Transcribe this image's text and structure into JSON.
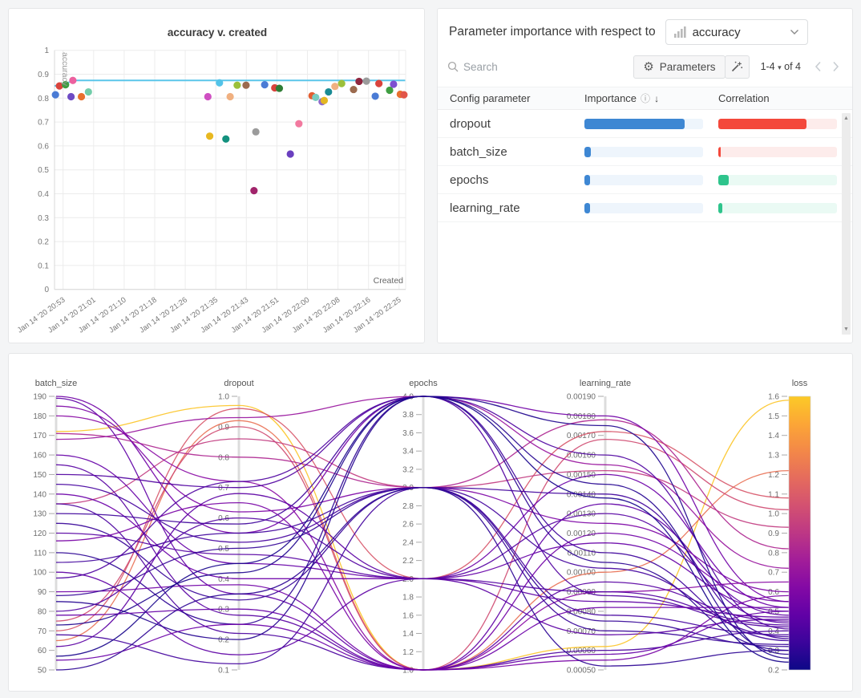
{
  "colors": {
    "page_bg": "#f4f5f6",
    "panel_border": "#e5e6e8",
    "grid": "#ececec",
    "axis": "#d8d8d8",
    "tick_text": "#777777",
    "baseline_blue": "#5bc6ea"
  },
  "importance_panel": {
    "title_prefix": "Parameter importance with respect to",
    "metric_dropdown": {
      "value": "accuracy"
    },
    "search": {
      "placeholder": "Search"
    },
    "buttons": {
      "parameters": "Parameters"
    },
    "pagination": {
      "range": "1-4",
      "of_label": "of 4"
    },
    "table": {
      "headers": {
        "parameter": "Config parameter",
        "importance": "Importance",
        "correlation": "Correlation"
      },
      "rows": [
        {
          "name": "dropout",
          "importance": 0.845,
          "correlation": -0.745
        },
        {
          "name": "batch_size",
          "importance": 0.055,
          "correlation": -0.02
        },
        {
          "name": "epochs",
          "importance": 0.05,
          "correlation": 0.09
        },
        {
          "name": "learning_rate",
          "importance": 0.05,
          "correlation": 0.035
        }
      ],
      "colors": {
        "importance_fill": "#3e87d3",
        "importance_track": "#eef5fc",
        "negative_fill": "#f4483b",
        "negative_track": "#fdeceb",
        "positive_fill": "#2ec48c",
        "positive_track": "#eafaf4"
      }
    }
  },
  "chart_data": [
    {
      "type": "scatter",
      "title": "accuracy v. created",
      "xlabel": "Created",
      "ylabel": "accuracy",
      "ylim": [
        0,
        1
      ],
      "y_tick_step": 0.1,
      "x_tick_labels": [
        "Jan 14 '20 20:53",
        "Jan 14 '20 21:01",
        "Jan 14 '20 21:10",
        "Jan 14 '20 21:18",
        "Jan 14 '20 21:26",
        "Jan 14 '20 21:35",
        "Jan 14 '20 21:43",
        "Jan 14 '20 21:51",
        "Jan 14 '20 22:00",
        "Jan 14 '20 22:08",
        "Jan 14 '20 22:16",
        "Jan 14 '20 22:25"
      ],
      "baseline": {
        "color": "#5bc6ea",
        "path": [
          [
            -0.3,
            0.851
          ],
          [
            0.05,
            0.858
          ],
          [
            0.32,
            0.874
          ],
          [
            11.2,
            0.874
          ]
        ]
      },
      "points": [
        [
          -0.25,
          0.814,
          "#4a7bd5"
        ],
        [
          -0.12,
          0.851,
          "#d9433c"
        ],
        [
          0.08,
          0.856,
          "#3f9e42"
        ],
        [
          0.32,
          0.874,
          "#ec619f"
        ],
        [
          0.26,
          0.806,
          "#6e4bc4"
        ],
        [
          0.6,
          0.806,
          "#e8702e"
        ],
        [
          0.83,
          0.826,
          "#72cdaa"
        ],
        [
          4.74,
          0.806,
          "#cf4fc2"
        ],
        [
          4.8,
          0.641,
          "#e8b820"
        ],
        [
          5.12,
          0.864,
          "#53c3e8"
        ],
        [
          5.33,
          0.629,
          "#13917e"
        ],
        [
          5.47,
          0.806,
          "#f0b080"
        ],
        [
          5.7,
          0.854,
          "#9cc03a"
        ],
        [
          5.99,
          0.854,
          "#9c6b4f"
        ],
        [
          6.25,
          0.413,
          "#a1246b"
        ],
        [
          6.31,
          0.659,
          "#9b9b9b"
        ],
        [
          6.6,
          0.856,
          "#4a7bd5"
        ],
        [
          6.93,
          0.843,
          "#d9433c"
        ],
        [
          7.08,
          0.841,
          "#2f7d35"
        ],
        [
          7.44,
          0.566,
          "#6a3fbf"
        ],
        [
          7.72,
          0.693,
          "#f2799f"
        ],
        [
          8.15,
          0.81,
          "#e35e31"
        ],
        [
          8.27,
          0.803,
          "#79ccc0"
        ],
        [
          8.48,
          0.785,
          "#8e6bc9"
        ],
        [
          8.55,
          0.79,
          "#e3b722"
        ],
        [
          8.69,
          0.826,
          "#198b94"
        ],
        [
          8.9,
          0.849,
          "#f0b080"
        ],
        [
          9.12,
          0.861,
          "#9cc03a"
        ],
        [
          9.51,
          0.836,
          "#9c6b4f"
        ],
        [
          9.69,
          0.87,
          "#8f2740"
        ],
        [
          9.93,
          0.871,
          "#9b9b9b"
        ],
        [
          10.22,
          0.808,
          "#4a7bd5"
        ],
        [
          10.34,
          0.861,
          "#d9433c"
        ],
        [
          10.69,
          0.833,
          "#3f9e42"
        ],
        [
          10.82,
          0.858,
          "#7d4fd0"
        ],
        [
          11.04,
          0.816,
          "#e8702e"
        ],
        [
          11.16,
          0.814,
          "#e25549"
        ]
      ]
    },
    {
      "type": "parallel-coordinates",
      "axes": [
        {
          "name": "batch_size",
          "min": 50,
          "max": 190,
          "step": 10,
          "decimals": 0
        },
        {
          "name": "dropout",
          "min": 0.1,
          "max": 1.0,
          "step": 0.1,
          "decimals": 1
        },
        {
          "name": "epochs",
          "min": 1.0,
          "max": 4.0,
          "step": 0.2,
          "decimals": 1
        },
        {
          "name": "learning_rate",
          "min": 0.0005,
          "max": 0.0019,
          "step": 0.0001,
          "decimals": 5
        },
        {
          "name": "loss",
          "min": 0.2,
          "max": 1.6,
          "step": 0.1,
          "decimals": 1
        }
      ],
      "color_by": "loss",
      "color_range": [
        0.2,
        1.6
      ],
      "colormap": "plasma",
      "runs": [
        [
          172,
          0.97,
          1,
          0.00062,
          1.58
        ],
        [
          65,
          0.92,
          1,
          0.001,
          1.22
        ],
        [
          70,
          0.96,
          2,
          0.00172,
          1.08
        ],
        [
          75,
          0.9,
          1,
          0.00168,
          1.02
        ],
        [
          135,
          0.86,
          3,
          0.00152,
          0.93
        ],
        [
          171,
          0.8,
          3,
          0.00178,
          0.82
        ],
        [
          168,
          0.93,
          4,
          0.00155,
          0.72
        ],
        [
          190,
          0.55,
          4,
          0.0018,
          0.55
        ],
        [
          189,
          0.35,
          1,
          0.00135,
          0.48
        ],
        [
          185,
          0.62,
          3,
          0.00125,
          0.6
        ],
        [
          180,
          0.72,
          1,
          0.0009,
          0.65
        ],
        [
          160,
          0.45,
          2,
          0.00115,
          0.5
        ],
        [
          155,
          0.28,
          1,
          0.00095,
          0.45
        ],
        [
          150,
          0.7,
          4,
          0.00088,
          0.42
        ],
        [
          145,
          0.52,
          3,
          0.00078,
          0.38
        ],
        [
          140,
          0.4,
          2,
          0.0015,
          0.52
        ],
        [
          135,
          0.22,
          1,
          0.0006,
          0.4
        ],
        [
          130,
          0.58,
          4,
          0.0011,
          0.35
        ],
        [
          125,
          0.33,
          3,
          0.0007,
          0.33
        ],
        [
          120,
          0.48,
          2,
          0.0013,
          0.44
        ],
        [
          116,
          0.65,
          1,
          0.00055,
          0.58
        ],
        [
          110,
          0.25,
          4,
          0.00105,
          0.3
        ],
        [
          105,
          0.55,
          3,
          0.0014,
          0.36
        ],
        [
          100,
          0.15,
          2,
          0.00085,
          0.47
        ],
        [
          97,
          0.72,
          4,
          0.0016,
          0.41
        ],
        [
          90,
          0.38,
          1,
          0.0012,
          0.55
        ],
        [
          88,
          0.5,
          3,
          0.00075,
          0.32
        ],
        [
          85,
          0.2,
          4,
          0.00145,
          0.28
        ],
        [
          80,
          0.6,
          2,
          0.0009,
          0.43
        ],
        [
          78,
          0.3,
          1,
          0.00058,
          0.5
        ],
        [
          73,
          0.42,
          4,
          0.00175,
          0.26
        ],
        [
          68,
          0.12,
          3,
          0.00102,
          0.37
        ],
        [
          62,
          0.68,
          2,
          0.00068,
          0.46
        ],
        [
          57,
          0.45,
          4,
          0.00138,
          0.24
        ],
        [
          55,
          0.25,
          1,
          0.00082,
          0.52
        ],
        [
          50,
          0.35,
          3,
          0.00052,
          0.3
        ]
      ]
    }
  ]
}
